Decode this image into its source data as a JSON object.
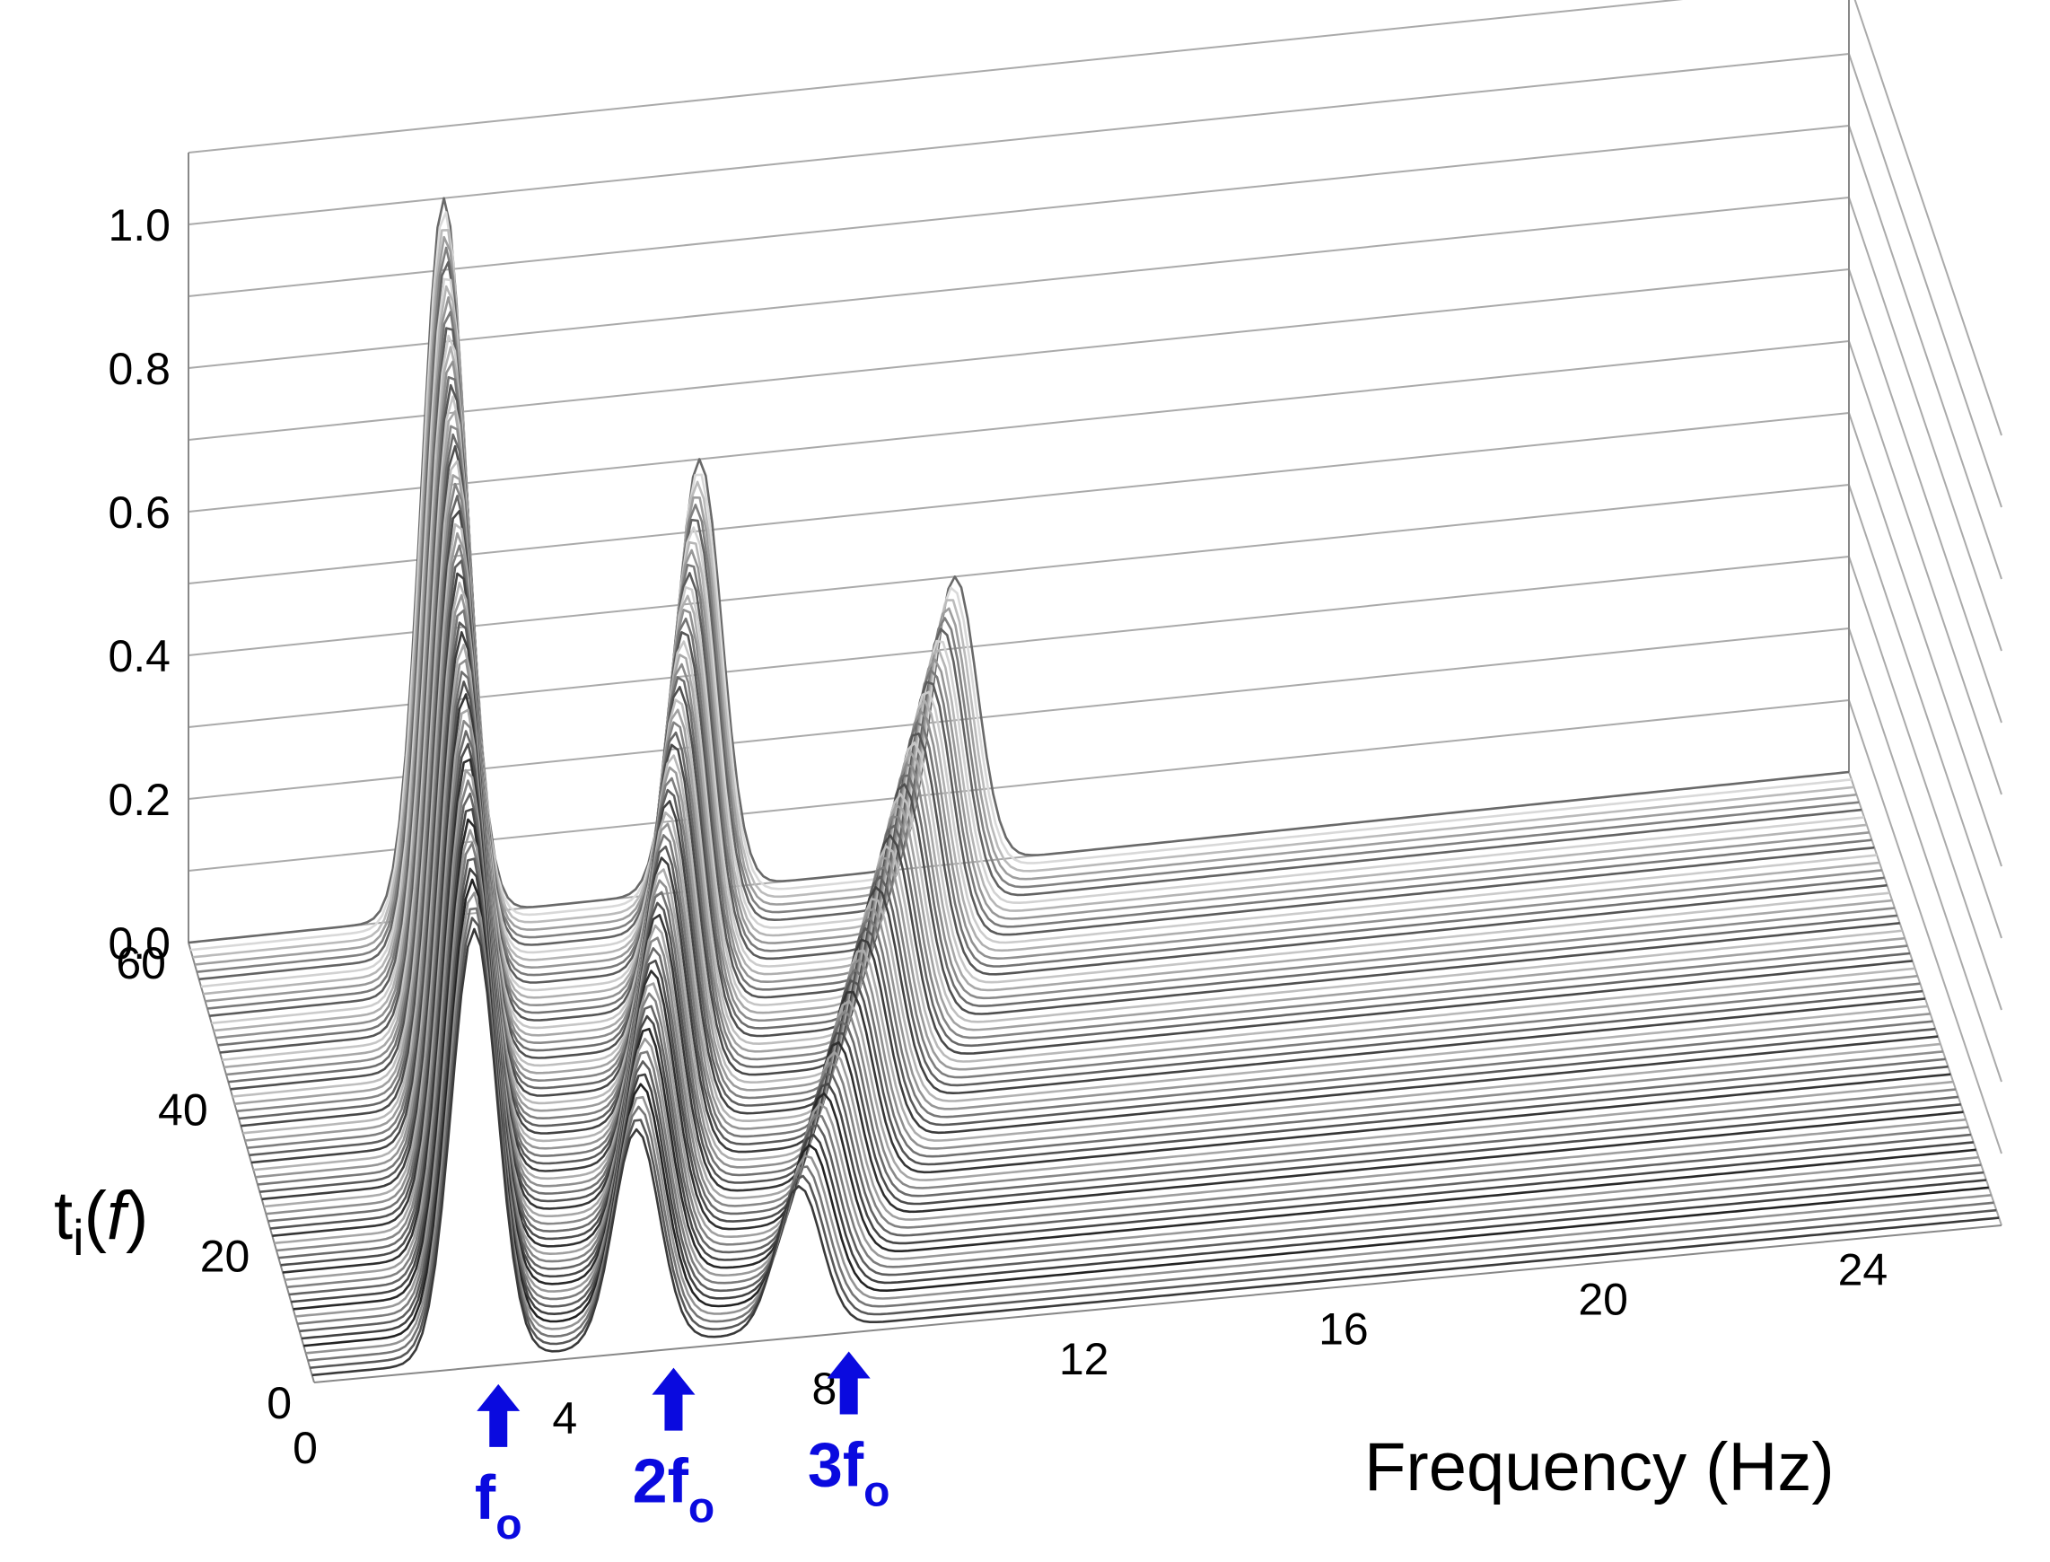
{
  "chart_data": {
    "type": "line",
    "subtype": "3d-waterfall",
    "title": "",
    "z_axis": {
      "label_main": "t",
      "label_sub": "i",
      "label_paren_open": "(",
      "label_var": "f",
      "label_paren_close": ")",
      "range": [
        0,
        1.1
      ],
      "ticks": [
        {
          "value": 0.0,
          "label": "0.0"
        },
        {
          "value": 0.2,
          "label": "0.2"
        },
        {
          "value": 0.4,
          "label": "0.4"
        },
        {
          "value": 0.6,
          "label": "0.6"
        },
        {
          "value": 0.8,
          "label": "0.8"
        },
        {
          "value": 1.0,
          "label": "1.0"
        }
      ]
    },
    "x_axis": {
      "label": "Frequency (Hz)",
      "range": [
        0,
        26
      ],
      "ticks": [
        {
          "value": 0,
          "label": "0"
        },
        {
          "value": 4,
          "label": "4"
        },
        {
          "value": 8,
          "label": "8"
        },
        {
          "value": 12,
          "label": "12"
        },
        {
          "value": 16,
          "label": "16"
        },
        {
          "value": 20,
          "label": "20"
        },
        {
          "value": 24,
          "label": "24"
        }
      ]
    },
    "y_axis": {
      "label": "",
      "range": [
        0,
        60
      ],
      "ticks": [
        {
          "value": 0,
          "label": "0"
        },
        {
          "value": 20,
          "label": "20"
        },
        {
          "value": 40,
          "label": "40"
        },
        {
          "value": 60,
          "label": "60"
        }
      ]
    },
    "series_count": 60,
    "series_generator": {
      "description": "one line per depth index i = 1..60; harmonic peaks at k * f_o(i)",
      "fo_start": 2.5,
      "fo_end": 4.0,
      "peak_heights": [
        {
          "harmonic": 1,
          "start": 0.6,
          "end": 1.0
        },
        {
          "harmonic": 2,
          "start": 0.3,
          "end": 0.6
        },
        {
          "harmonic": 3,
          "start": 0.2,
          "end": 0.4
        }
      ],
      "peak_width_hz": 0.35
    },
    "harmonic_markers": [
      {
        "frequency": 2.7,
        "label_main": "f",
        "label_sub": "o"
      },
      {
        "frequency": 5.4,
        "label_main": "2f",
        "label_sub": "o"
      },
      {
        "frequency": 8.1,
        "label_main": "3f",
        "label_sub": "o"
      }
    ],
    "colors": {
      "series_dark": "#1e1e1e",
      "series_light": "#dadada",
      "grid": "#aaaaaa",
      "axis": "#888888",
      "marker": "#0a0adf"
    },
    "grid": true,
    "legend": false
  }
}
